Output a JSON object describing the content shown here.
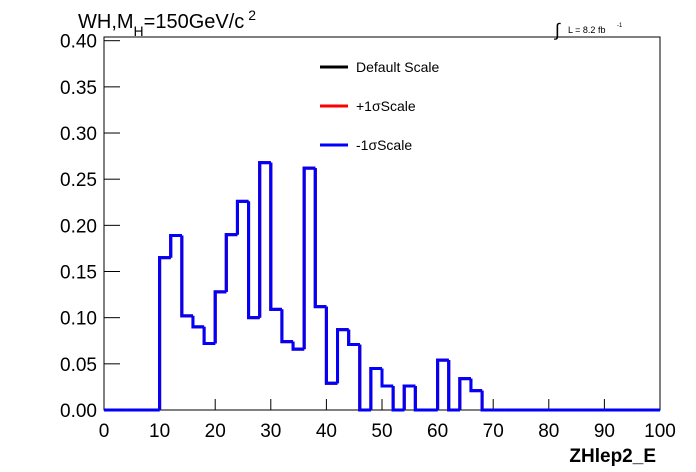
{
  "chart_data": {
    "type": "histogram",
    "title_parts": [
      "WH,M",
      "H",
      "=150GeV/c",
      "2"
    ],
    "lumi_parts": [
      "∫",
      "L = 8.2 fb",
      "-1"
    ],
    "xlabel": "ZHlep2_E",
    "bins": [
      0,
      2,
      4,
      6,
      8,
      10,
      12,
      14,
      16,
      18,
      20,
      22,
      24,
      26,
      28,
      30,
      32,
      34,
      36,
      38,
      40,
      42,
      44,
      46,
      48,
      50,
      52,
      54,
      56,
      58,
      60,
      62,
      64,
      66,
      68,
      70,
      72,
      74,
      76,
      78,
      80,
      82,
      84,
      86,
      88,
      90,
      92,
      94,
      96,
      98,
      100
    ],
    "series": [
      {
        "name": "Default Scale",
        "color": "#000000",
        "values": [
          0,
          0,
          0,
          0,
          0,
          0.165,
          0.189,
          0.102,
          0.09,
          0.072,
          0.128,
          0.19,
          0.226,
          0.1,
          0.268,
          0.109,
          0.074,
          0.066,
          0.262,
          0.112,
          0.029,
          0.087,
          0.071,
          0,
          0.045,
          0.026,
          0,
          0.026,
          0,
          0,
          0.054,
          0,
          0.034,
          0.021,
          0,
          0,
          0,
          0,
          0,
          0,
          0,
          0,
          0,
          0,
          0,
          0,
          0,
          0,
          0,
          0
        ]
      },
      {
        "name": "+1σScale",
        "color": "#ff0000",
        "values": [
          0,
          0,
          0,
          0,
          0,
          0.165,
          0.189,
          0.102,
          0.09,
          0.072,
          0.128,
          0.19,
          0.226,
          0.1,
          0.268,
          0.109,
          0.074,
          0.066,
          0.262,
          0.112,
          0.029,
          0.087,
          0.071,
          0,
          0.045,
          0.026,
          0,
          0.026,
          0,
          0,
          0.054,
          0,
          0.034,
          0.021,
          0,
          0,
          0,
          0,
          0,
          0,
          0,
          0,
          0,
          0,
          0,
          0,
          0,
          0,
          0,
          0
        ]
      },
      {
        "name": "-1σScale",
        "color": "#0000ff",
        "values": [
          0,
          0,
          0,
          0,
          0,
          0.165,
          0.189,
          0.102,
          0.09,
          0.072,
          0.128,
          0.19,
          0.226,
          0.1,
          0.268,
          0.109,
          0.074,
          0.066,
          0.262,
          0.112,
          0.029,
          0.087,
          0.071,
          0,
          0.045,
          0.026,
          0,
          0.026,
          0,
          0,
          0.054,
          0,
          0.034,
          0.021,
          0,
          0,
          0,
          0,
          0,
          0,
          0,
          0,
          0,
          0,
          0,
          0,
          0,
          0,
          0,
          0
        ]
      }
    ],
    "xlim": [
      0,
      100
    ],
    "xticks": [
      0,
      10,
      20,
      30,
      40,
      50,
      60,
      70,
      80,
      90,
      100
    ],
    "ylim": [
      0,
      0.404
    ],
    "yticks": [
      {
        "value": 0,
        "label": "0.00"
      },
      {
        "value": 0.05,
        "label": "0.05"
      },
      {
        "value": 0.1,
        "label": "0.10"
      },
      {
        "value": 0.15,
        "label": "0.15"
      },
      {
        "value": 0.2,
        "label": "0.20"
      },
      {
        "value": 0.25,
        "label": "0.25"
      },
      {
        "value": 0.3,
        "label": "0.30"
      },
      {
        "value": 0.35,
        "label": "0.35"
      },
      {
        "value": 0.4,
        "label": "0.40"
      }
    ]
  }
}
